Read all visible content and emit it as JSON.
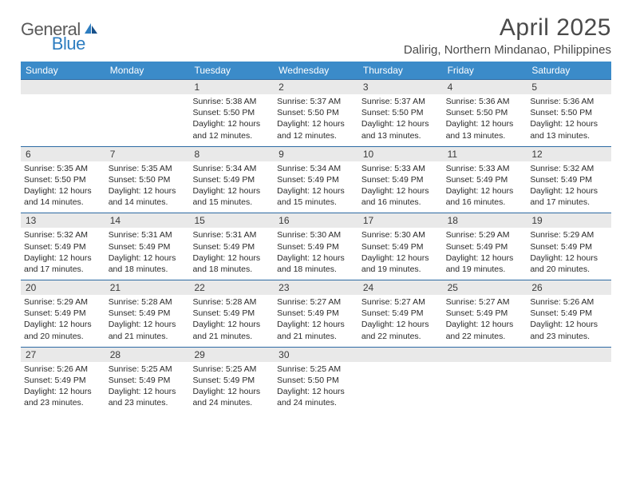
{
  "logo": {
    "general": "General",
    "blue": "Blue"
  },
  "title": "April 2025",
  "location": "Dalirig, Northern Mindanao, Philippines",
  "colors": {
    "header_bg": "#3b8bc9",
    "week_border": "#2d6aa3",
    "daynum_bg": "#e9e9e9",
    "text": "#3a3a3a",
    "logo_gray": "#5a5a5a",
    "logo_blue": "#2d7dc0"
  },
  "dow": [
    "Sunday",
    "Monday",
    "Tuesday",
    "Wednesday",
    "Thursday",
    "Friday",
    "Saturday"
  ],
  "weeks": [
    [
      null,
      null,
      {
        "n": "1",
        "sr": "5:38 AM",
        "ss": "5:50 PM",
        "dl": "12 hours and 12 minutes."
      },
      {
        "n": "2",
        "sr": "5:37 AM",
        "ss": "5:50 PM",
        "dl": "12 hours and 12 minutes."
      },
      {
        "n": "3",
        "sr": "5:37 AM",
        "ss": "5:50 PM",
        "dl": "12 hours and 13 minutes."
      },
      {
        "n": "4",
        "sr": "5:36 AM",
        "ss": "5:50 PM",
        "dl": "12 hours and 13 minutes."
      },
      {
        "n": "5",
        "sr": "5:36 AM",
        "ss": "5:50 PM",
        "dl": "12 hours and 13 minutes."
      }
    ],
    [
      {
        "n": "6",
        "sr": "5:35 AM",
        "ss": "5:50 PM",
        "dl": "12 hours and 14 minutes."
      },
      {
        "n": "7",
        "sr": "5:35 AM",
        "ss": "5:50 PM",
        "dl": "12 hours and 14 minutes."
      },
      {
        "n": "8",
        "sr": "5:34 AM",
        "ss": "5:49 PM",
        "dl": "12 hours and 15 minutes."
      },
      {
        "n": "9",
        "sr": "5:34 AM",
        "ss": "5:49 PM",
        "dl": "12 hours and 15 minutes."
      },
      {
        "n": "10",
        "sr": "5:33 AM",
        "ss": "5:49 PM",
        "dl": "12 hours and 16 minutes."
      },
      {
        "n": "11",
        "sr": "5:33 AM",
        "ss": "5:49 PM",
        "dl": "12 hours and 16 minutes."
      },
      {
        "n": "12",
        "sr": "5:32 AM",
        "ss": "5:49 PM",
        "dl": "12 hours and 17 minutes."
      }
    ],
    [
      {
        "n": "13",
        "sr": "5:32 AM",
        "ss": "5:49 PM",
        "dl": "12 hours and 17 minutes."
      },
      {
        "n": "14",
        "sr": "5:31 AM",
        "ss": "5:49 PM",
        "dl": "12 hours and 18 minutes."
      },
      {
        "n": "15",
        "sr": "5:31 AM",
        "ss": "5:49 PM",
        "dl": "12 hours and 18 minutes."
      },
      {
        "n": "16",
        "sr": "5:30 AM",
        "ss": "5:49 PM",
        "dl": "12 hours and 18 minutes."
      },
      {
        "n": "17",
        "sr": "5:30 AM",
        "ss": "5:49 PM",
        "dl": "12 hours and 19 minutes."
      },
      {
        "n": "18",
        "sr": "5:29 AM",
        "ss": "5:49 PM",
        "dl": "12 hours and 19 minutes."
      },
      {
        "n": "19",
        "sr": "5:29 AM",
        "ss": "5:49 PM",
        "dl": "12 hours and 20 minutes."
      }
    ],
    [
      {
        "n": "20",
        "sr": "5:29 AM",
        "ss": "5:49 PM",
        "dl": "12 hours and 20 minutes."
      },
      {
        "n": "21",
        "sr": "5:28 AM",
        "ss": "5:49 PM",
        "dl": "12 hours and 21 minutes."
      },
      {
        "n": "22",
        "sr": "5:28 AM",
        "ss": "5:49 PM",
        "dl": "12 hours and 21 minutes."
      },
      {
        "n": "23",
        "sr": "5:27 AM",
        "ss": "5:49 PM",
        "dl": "12 hours and 21 minutes."
      },
      {
        "n": "24",
        "sr": "5:27 AM",
        "ss": "5:49 PM",
        "dl": "12 hours and 22 minutes."
      },
      {
        "n": "25",
        "sr": "5:27 AM",
        "ss": "5:49 PM",
        "dl": "12 hours and 22 minutes."
      },
      {
        "n": "26",
        "sr": "5:26 AM",
        "ss": "5:49 PM",
        "dl": "12 hours and 23 minutes."
      }
    ],
    [
      {
        "n": "27",
        "sr": "5:26 AM",
        "ss": "5:49 PM",
        "dl": "12 hours and 23 minutes."
      },
      {
        "n": "28",
        "sr": "5:25 AM",
        "ss": "5:49 PM",
        "dl": "12 hours and 23 minutes."
      },
      {
        "n": "29",
        "sr": "5:25 AM",
        "ss": "5:49 PM",
        "dl": "12 hours and 24 minutes."
      },
      {
        "n": "30",
        "sr": "5:25 AM",
        "ss": "5:50 PM",
        "dl": "12 hours and 24 minutes."
      },
      null,
      null,
      null
    ]
  ],
  "labels": {
    "sunrise": "Sunrise: ",
    "sunset": "Sunset: ",
    "daylight": "Daylight: "
  }
}
